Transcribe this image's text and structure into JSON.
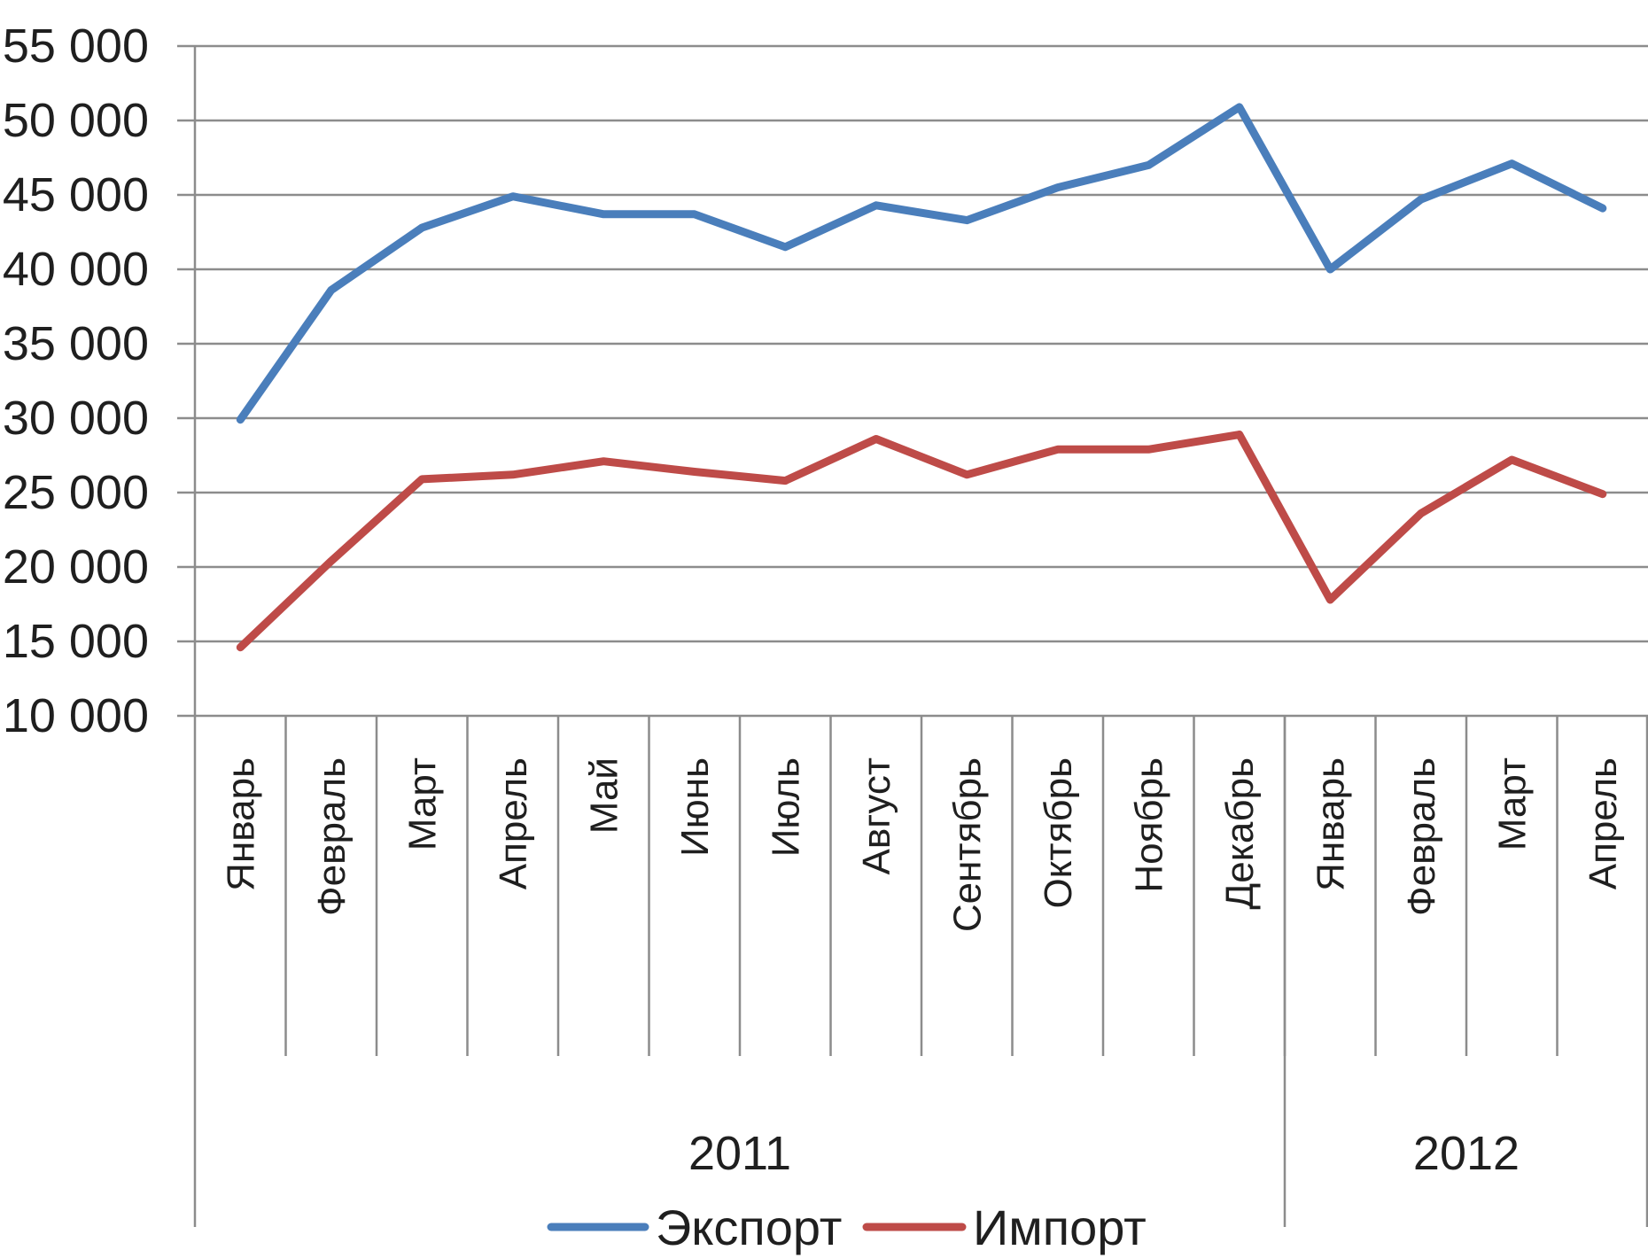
{
  "chart_data": {
    "type": "line",
    "title": "",
    "xlabel": "",
    "ylabel": "",
    "ylim": [
      10000,
      55000
    ],
    "yticks": [
      10000,
      15000,
      20000,
      25000,
      30000,
      35000,
      40000,
      45000,
      50000,
      55000
    ],
    "ytick_labels": [
      "10 000",
      "15 000",
      "20 000",
      "25 000",
      "30 000",
      "35 000",
      "40 000",
      "45 000",
      "50 000",
      "55 000"
    ],
    "categories": [
      "Январь",
      "Февраль",
      "Март",
      "Апрель",
      "Май",
      "Июнь",
      "Июль",
      "Август",
      "Сентябрь",
      "Октябрь",
      "Ноябрь",
      "Декабрь",
      "Январь",
      "Февраль",
      "Март",
      "Апрель"
    ],
    "groups": [
      {
        "label": "2011",
        "count": 12
      },
      {
        "label": "2012",
        "count": 4
      }
    ],
    "grid": true,
    "legend_position": "bottom",
    "series": [
      {
        "name": "Экспорт",
        "color": "#4a7ebb",
        "values": [
          29900,
          38600,
          42800,
          44900,
          43700,
          43700,
          41500,
          44300,
          43300,
          45500,
          47000,
          50900,
          40000,
          44700,
          47100,
          44100
        ]
      },
      {
        "name": "Импорт",
        "color": "#be4b48",
        "values": [
          14600,
          20400,
          25900,
          26200,
          27100,
          26400,
          25800,
          28600,
          26200,
          27900,
          27900,
          28900,
          17800,
          23600,
          27200,
          24900
        ]
      }
    ]
  }
}
